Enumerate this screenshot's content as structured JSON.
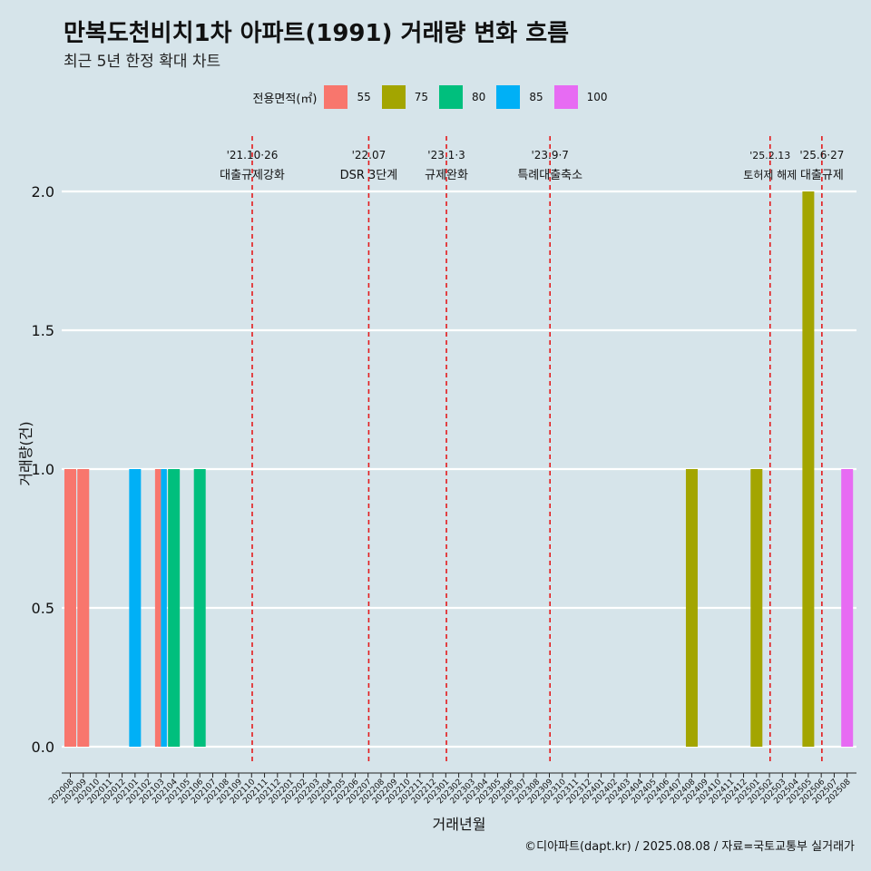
{
  "title": "만복도천비치1차 아파트(1991) 거래량 변화 흐름",
  "subtitle": "최근 5년 한정 확대 차트",
  "caption": "©디아파트(dapt.kr) / 2025.08.08 / 자료=국토교통부 실거래가",
  "legend": {
    "title": "전용면적(㎡)",
    "items": [
      {
        "label": "55",
        "color": "#f8766d"
      },
      {
        "label": "75",
        "color": "#a3a500"
      },
      {
        "label": "80",
        "color": "#00bf7d"
      },
      {
        "label": "85",
        "color": "#00b0f6"
      },
      {
        "label": "100",
        "color": "#e76bf3"
      }
    ]
  },
  "chart_data": {
    "type": "bar",
    "xlabel": "거래년월",
    "ylabel": "거래량(건)",
    "ylim": [
      0,
      2.2
    ],
    "yticks": [
      "0.0",
      "0.5",
      "1.0",
      "1.5",
      "2.0"
    ],
    "ytick_values": [
      0,
      0.5,
      1.0,
      1.5,
      2.0
    ],
    "grid": true,
    "legend_position": "top",
    "categories": [
      "202008",
      "202009",
      "202010",
      "202011",
      "202012",
      "202101",
      "202102",
      "202103",
      "202104",
      "202105",
      "202106",
      "202107",
      "202108",
      "202109",
      "202110",
      "202111",
      "202112",
      "202201",
      "202202",
      "202203",
      "202204",
      "202205",
      "202206",
      "202207",
      "202208",
      "202209",
      "202210",
      "202211",
      "202212",
      "202301",
      "202302",
      "202303",
      "202304",
      "202305",
      "202306",
      "202307",
      "202308",
      "202309",
      "202310",
      "202311",
      "202312",
      "202401",
      "202402",
      "202403",
      "202404",
      "202405",
      "202406",
      "202407",
      "202408",
      "202409",
      "202410",
      "202411",
      "202412",
      "202501",
      "202502",
      "202503",
      "202504",
      "202505",
      "202506",
      "202507",
      "202508"
    ],
    "bars": [
      {
        "x": "202008",
        "area": "55",
        "value": 1
      },
      {
        "x": "202009",
        "area": "55",
        "value": 1
      },
      {
        "x": "202101",
        "area": "85",
        "value": 1
      },
      {
        "x": "202103",
        "area": "55",
        "value": 1,
        "slot": 0,
        "slots": 2
      },
      {
        "x": "202103",
        "area": "85",
        "value": 1,
        "slot": 1,
        "slots": 2
      },
      {
        "x": "202104",
        "area": "80",
        "value": 1
      },
      {
        "x": "202106",
        "area": "80",
        "value": 1
      },
      {
        "x": "202408",
        "area": "75",
        "value": 1
      },
      {
        "x": "202501",
        "area": "75",
        "value": 1
      },
      {
        "x": "202505",
        "area": "75",
        "value": 2
      },
      {
        "x": "202508",
        "area": "100",
        "value": 1
      }
    ],
    "events": [
      {
        "date": "'21.10·26",
        "label": "대출규제강화",
        "x": "202110",
        "offset": 0.5
      },
      {
        "date": "'22.07",
        "label": "DSR 3단계",
        "x": "202207",
        "offset": 0.5
      },
      {
        "date": "'23.1·3",
        "label": "규제완화",
        "x": "202301",
        "offset": 0.5
      },
      {
        "date": "'23.9·7",
        "label": "특례대출축소",
        "x": "202309",
        "offset": 0.5
      },
      {
        "date": "'25.2.13",
        "label": "토허제 해제",
        "x": "202502",
        "offset": 0.5,
        "small": true
      },
      {
        "date": "'25.6·27",
        "label": "대출규제",
        "x": "202506",
        "offset": 0.5
      }
    ]
  }
}
